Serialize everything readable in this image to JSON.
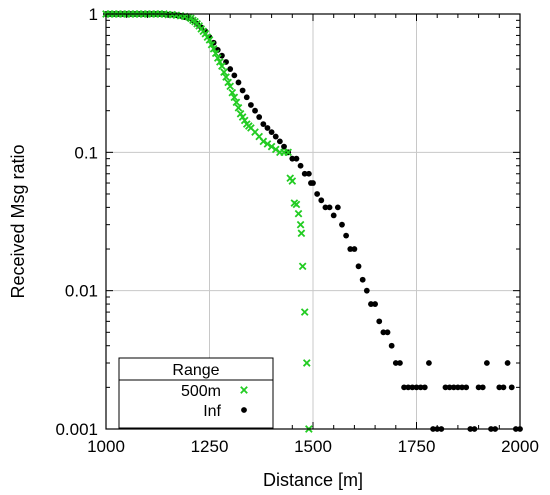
{
  "chart_data": {
    "type": "scatter",
    "xlabel": "Distance [m]",
    "ylabel": "Received Msg ratio",
    "x_scale": "linear",
    "y_scale": "log",
    "xlim": [
      1000,
      2000
    ],
    "ylim": [
      0.001,
      1
    ],
    "xticks": [
      1000,
      1250,
      1500,
      1750,
      2000
    ],
    "xtick_labels": [
      "1000",
      "1250",
      "1500",
      "1750",
      "2000"
    ],
    "yticks": [
      0.001,
      0.01,
      0.1,
      1
    ],
    "ytick_labels": [
      "0.001",
      "0.01",
      "0.1",
      "1"
    ],
    "grid": true,
    "legend": {
      "title": "Range",
      "position": "bottom-left"
    },
    "series": [
      {
        "name": "500m",
        "marker": "x",
        "color": "#22cc22",
        "points": [
          [
            1000,
            1
          ],
          [
            1010,
            1
          ],
          [
            1020,
            1
          ],
          [
            1030,
            1
          ],
          [
            1040,
            1
          ],
          [
            1050,
            1
          ],
          [
            1060,
            1
          ],
          [
            1070,
            1
          ],
          [
            1080,
            1
          ],
          [
            1090,
            1
          ],
          [
            1100,
            1
          ],
          [
            1110,
            1
          ],
          [
            1120,
            1
          ],
          [
            1130,
            1
          ],
          [
            1140,
            1
          ],
          [
            1150,
            0.99
          ],
          [
            1160,
            0.99
          ],
          [
            1170,
            0.98
          ],
          [
            1180,
            0.97
          ],
          [
            1190,
            0.96
          ],
          [
            1200,
            0.95
          ],
          [
            1205,
            0.93
          ],
          [
            1210,
            0.9
          ],
          [
            1215,
            0.88
          ],
          [
            1220,
            0.85
          ],
          [
            1225,
            0.82
          ],
          [
            1230,
            0.78
          ],
          [
            1235,
            0.75
          ],
          [
            1240,
            0.72
          ],
          [
            1245,
            0.68
          ],
          [
            1250,
            0.65
          ],
          [
            1255,
            0.6
          ],
          [
            1260,
            0.56
          ],
          [
            1265,
            0.52
          ],
          [
            1270,
            0.48
          ],
          [
            1275,
            0.45
          ],
          [
            1280,
            0.42
          ],
          [
            1285,
            0.38
          ],
          [
            1290,
            0.35
          ],
          [
            1295,
            0.32
          ],
          [
            1300,
            0.3
          ],
          [
            1305,
            0.27
          ],
          [
            1310,
            0.25
          ],
          [
            1315,
            0.23
          ],
          [
            1320,
            0.21
          ],
          [
            1325,
            0.19
          ],
          [
            1330,
            0.18
          ],
          [
            1335,
            0.17
          ],
          [
            1340,
            0.16
          ],
          [
            1345,
            0.155
          ],
          [
            1350,
            0.15
          ],
          [
            1360,
            0.14
          ],
          [
            1370,
            0.13
          ],
          [
            1380,
            0.12
          ],
          [
            1390,
            0.115
          ],
          [
            1400,
            0.11
          ],
          [
            1410,
            0.105
          ],
          [
            1420,
            0.1
          ],
          [
            1430,
            0.1
          ],
          [
            1440,
            0.1
          ],
          [
            1445,
            0.065
          ],
          [
            1450,
            0.062
          ],
          [
            1455,
            0.043
          ],
          [
            1460,
            0.042
          ],
          [
            1465,
            0.036
          ],
          [
            1470,
            0.03
          ],
          [
            1472,
            0.026
          ],
          [
            1475,
            0.015
          ],
          [
            1480,
            0.007
          ],
          [
            1485,
            0.003
          ],
          [
            1490,
            0.001
          ]
        ]
      },
      {
        "name": "Inf",
        "marker": "dot",
        "color": "#000000",
        "points": [
          [
            1000,
            1
          ],
          [
            1010,
            1
          ],
          [
            1020,
            1
          ],
          [
            1030,
            1
          ],
          [
            1040,
            1
          ],
          [
            1050,
            1
          ],
          [
            1060,
            1
          ],
          [
            1070,
            1
          ],
          [
            1080,
            1
          ],
          [
            1090,
            1
          ],
          [
            1100,
            1
          ],
          [
            1110,
            1
          ],
          [
            1120,
            1
          ],
          [
            1130,
            1
          ],
          [
            1140,
            1
          ],
          [
            1150,
            0.99
          ],
          [
            1160,
            0.99
          ],
          [
            1170,
            0.98
          ],
          [
            1180,
            0.97
          ],
          [
            1190,
            0.95
          ],
          [
            1200,
            0.93
          ],
          [
            1210,
            0.9
          ],
          [
            1220,
            0.85
          ],
          [
            1230,
            0.8
          ],
          [
            1240,
            0.75
          ],
          [
            1250,
            0.68
          ],
          [
            1260,
            0.62
          ],
          [
            1270,
            0.55
          ],
          [
            1280,
            0.5
          ],
          [
            1290,
            0.45
          ],
          [
            1300,
            0.4
          ],
          [
            1310,
            0.36
          ],
          [
            1320,
            0.32
          ],
          [
            1330,
            0.28
          ],
          [
            1340,
            0.25
          ],
          [
            1350,
            0.22
          ],
          [
            1360,
            0.2
          ],
          [
            1370,
            0.18
          ],
          [
            1380,
            0.16
          ],
          [
            1390,
            0.15
          ],
          [
            1400,
            0.14
          ],
          [
            1410,
            0.13
          ],
          [
            1420,
            0.12
          ],
          [
            1430,
            0.11
          ],
          [
            1440,
            0.1
          ],
          [
            1450,
            0.09
          ],
          [
            1460,
            0.09
          ],
          [
            1470,
            0.08
          ],
          [
            1480,
            0.07
          ],
          [
            1490,
            0.07
          ],
          [
            1495,
            0.06
          ],
          [
            1500,
            0.06
          ],
          [
            1510,
            0.05
          ],
          [
            1520,
            0.045
          ],
          [
            1530,
            0.04
          ],
          [
            1540,
            0.04
          ],
          [
            1550,
            0.035
          ],
          [
            1560,
            0.04
          ],
          [
            1570,
            0.03
          ],
          [
            1580,
            0.025
          ],
          [
            1590,
            0.02
          ],
          [
            1600,
            0.02
          ],
          [
            1610,
            0.015
          ],
          [
            1620,
            0.012
          ],
          [
            1630,
            0.01
          ],
          [
            1640,
            0.008
          ],
          [
            1650,
            0.008
          ],
          [
            1660,
            0.006
          ],
          [
            1670,
            0.005
          ],
          [
            1680,
            0.005
          ],
          [
            1690,
            0.004
          ],
          [
            1700,
            0.003
          ],
          [
            1710,
            0.003
          ],
          [
            1720,
            0.002
          ],
          [
            1730,
            0.002
          ],
          [
            1740,
            0.002
          ],
          [
            1750,
            0.002
          ],
          [
            1760,
            0.002
          ],
          [
            1770,
            0.002
          ],
          [
            1780,
            0.003
          ],
          [
            1790,
            0.001
          ],
          [
            1800,
            0.001
          ],
          [
            1810,
            0.001
          ],
          [
            1820,
            0.002
          ],
          [
            1830,
            0.002
          ],
          [
            1840,
            0.002
          ],
          [
            1850,
            0.002
          ],
          [
            1860,
            0.002
          ],
          [
            1870,
            0.002
          ],
          [
            1880,
            0.001
          ],
          [
            1890,
            0.001
          ],
          [
            1900,
            0.002
          ],
          [
            1910,
            0.002
          ],
          [
            1920,
            0.003
          ],
          [
            1930,
            0.001
          ],
          [
            1940,
            0.001
          ],
          [
            1950,
            0.002
          ],
          [
            1960,
            0.002
          ],
          [
            1970,
            0.003
          ],
          [
            1980,
            0.002
          ],
          [
            1990,
            0.001
          ],
          [
            2000,
            0.001
          ]
        ]
      }
    ]
  }
}
